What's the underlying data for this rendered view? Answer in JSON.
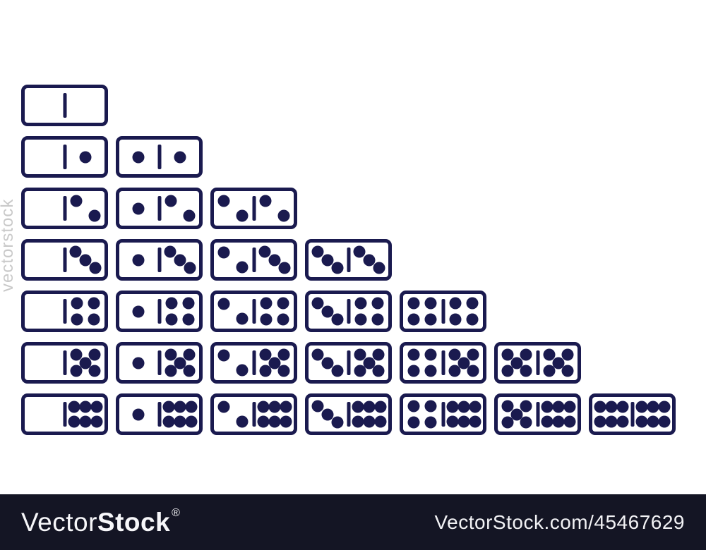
{
  "colors": {
    "domino_navy": "#1a1a4f",
    "footer_bg": "#141524",
    "watermark_gray": "#c9c9c9",
    "background": "#ffffff"
  },
  "watermark": {
    "side_text": "vectorstock"
  },
  "footer": {
    "brand_vector": "Vector",
    "brand_stock": "Stock",
    "registered": "®",
    "url": "VectorStock.com/45467629"
  },
  "domino_set": {
    "description": "Complete double-six domino set arranged in staircase rows, blank through six",
    "rows": [
      [
        [
          0,
          0
        ]
      ],
      [
        [
          0,
          1
        ],
        [
          1,
          1
        ]
      ],
      [
        [
          0,
          2
        ],
        [
          1,
          2
        ],
        [
          2,
          2
        ]
      ],
      [
        [
          0,
          3
        ],
        [
          1,
          3
        ],
        [
          2,
          3
        ],
        [
          3,
          3
        ]
      ],
      [
        [
          0,
          4
        ],
        [
          1,
          4
        ],
        [
          2,
          4
        ],
        [
          3,
          4
        ],
        [
          4,
          4
        ]
      ],
      [
        [
          0,
          5
        ],
        [
          1,
          5
        ],
        [
          2,
          5
        ],
        [
          3,
          5
        ],
        [
          4,
          5
        ],
        [
          5,
          5
        ]
      ],
      [
        [
          0,
          6
        ],
        [
          1,
          6
        ],
        [
          2,
          6
        ],
        [
          3,
          6
        ],
        [
          4,
          6
        ],
        [
          5,
          6
        ],
        [
          6,
          6
        ]
      ]
    ]
  }
}
